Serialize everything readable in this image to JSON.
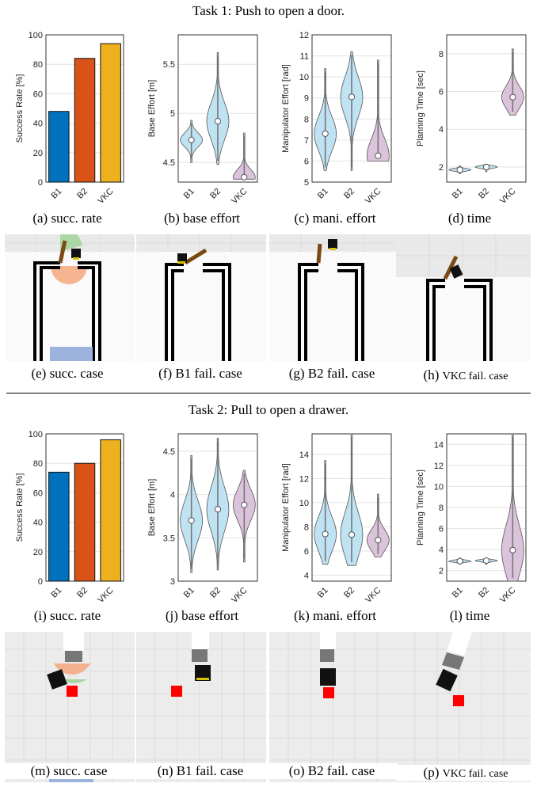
{
  "tasks": [
    {
      "title": "Task 1: Push to open a door.",
      "plots": [
        {
          "ylabel": "Success Rate [%]",
          "yticks": [
            "0",
            "20",
            "40",
            "60",
            "80",
            "100"
          ]
        },
        {
          "ylabel": "Base Effort [m]",
          "yticks": [
            "4.5",
            "5",
            "5.5"
          ]
        },
        {
          "ylabel": "Manipulator Effort [rad]",
          "yticks": [
            "5",
            "6",
            "7",
            "8",
            "9",
            "10",
            "11",
            "12"
          ]
        },
        {
          "ylabel": "Planning Time [sec]",
          "yticks": [
            "2",
            "4",
            "6",
            "8"
          ]
        }
      ],
      "plot_captions": [
        "(a) succ. rate",
        "(b) base effort",
        "(c) mani. effort",
        "(d) time"
      ],
      "case_captions": [
        "(e) succ. case",
        "(f) B1 fail. case",
        "(g) B2 fail. case",
        "(h) "
      ],
      "vkc_caption_small": "VKC fail. case"
    },
    {
      "title": "Task 2: Pull to open a drawer.",
      "plots": [
        {
          "ylabel": "Success Rate [%]",
          "yticks": [
            "0",
            "20",
            "40",
            "60",
            "80",
            "100"
          ]
        },
        {
          "ylabel": "Base Effort [m]",
          "yticks": [
            "3",
            "3.5",
            "4",
            "4.5"
          ]
        },
        {
          "ylabel": "Manipulator Effort [rad]",
          "yticks": [
            "4",
            "6",
            "8",
            "10",
            "12",
            "14"
          ]
        },
        {
          "ylabel": "Planning Time [sec]",
          "yticks": [
            "2",
            "4",
            "6",
            "8",
            "10",
            "12",
            "14"
          ]
        }
      ],
      "plot_captions": [
        "(i) succ. rate",
        "(j) base effort",
        "(k) mani. effort",
        "(l) time"
      ],
      "case_captions": [
        "(m) succ. case",
        "(n) B1 fail. case",
        "(o) B2 fail. case",
        "(p) "
      ],
      "vkc_caption_small": "VKC fail. case"
    }
  ],
  "categories": [
    "B1",
    "B2",
    "VKC"
  ],
  "colors": {
    "B1": "#0072bd",
    "B2": "#d95319",
    "VKC": "#edb120",
    "violin_blue": "#bfe3f3",
    "violin_purple": "#dcc3dc"
  },
  "chart_data": [
    {
      "type": "bar",
      "title": "",
      "categories": [
        "B1",
        "B2",
        "VKC"
      ],
      "values": [
        48,
        84,
        94
      ],
      "ylabel": "Success Rate [%]",
      "ylim": [
        0,
        100
      ]
    },
    {
      "type": "violin",
      "categories": [
        "B1",
        "B2",
        "VKC"
      ],
      "median": [
        4.73,
        4.92,
        4.35
      ],
      "range": [
        [
          4.5,
          4.93
        ],
        [
          4.48,
          5.62
        ],
        [
          4.33,
          4.8
        ]
      ],
      "ylabel": "Base Effort [m]",
      "ylim": [
        4.3,
        5.8
      ]
    },
    {
      "type": "violin",
      "categories": [
        "B1",
        "B2",
        "VKC"
      ],
      "median": [
        7.3,
        9.05,
        6.25
      ],
      "range": [
        [
          5.55,
          10.4
        ],
        [
          5.55,
          11.2
        ],
        [
          6.0,
          10.8
        ]
      ],
      "ylabel": "Manipulator Effort [rad]",
      "ylim": [
        5,
        12
      ]
    },
    {
      "type": "violin",
      "categories": [
        "B1",
        "B2",
        "VKC"
      ],
      "median": [
        1.85,
        2.0,
        5.7
      ],
      "range": [
        [
          1.65,
          2.05
        ],
        [
          1.75,
          2.15
        ],
        [
          4.75,
          8.25
        ]
      ],
      "ylabel": "Planning Time [sec]",
      "ylim": [
        1.2,
        9
      ]
    },
    {
      "type": "bar",
      "categories": [
        "B1",
        "B2",
        "VKC"
      ],
      "values": [
        74,
        80,
        96
      ],
      "ylabel": "Success Rate [%]",
      "ylim": [
        0,
        100
      ]
    },
    {
      "type": "violin",
      "categories": [
        "B1",
        "B2",
        "VKC"
      ],
      "median": [
        3.7,
        3.83,
        3.88
      ],
      "range": [
        [
          3.1,
          4.45
        ],
        [
          3.13,
          4.65
        ],
        [
          3.22,
          4.28
        ]
      ],
      "ylabel": "Base Effort [m]",
      "ylim": [
        3,
        4.7
      ]
    },
    {
      "type": "violin",
      "categories": [
        "B1",
        "B2",
        "VKC"
      ],
      "median": [
        7.4,
        7.35,
        6.9
      ],
      "range": [
        [
          4.9,
          13.5
        ],
        [
          4.8,
          15.7
        ],
        [
          5.5,
          10.7
        ]
      ],
      "ylabel": "Manipulator Effort [rad]",
      "ylim": [
        3.5,
        15.7
      ]
    },
    {
      "type": "violin",
      "categories": [
        "B1",
        "B2",
        "VKC"
      ],
      "median": [
        2.9,
        2.95,
        3.95
      ],
      "range": [
        [
          2.6,
          3.2
        ],
        [
          2.6,
          3.2
        ],
        [
          1.0,
          15.0
        ]
      ],
      "ylabel": "Planning Time [sec]",
      "ylim": [
        1,
        15
      ]
    }
  ]
}
